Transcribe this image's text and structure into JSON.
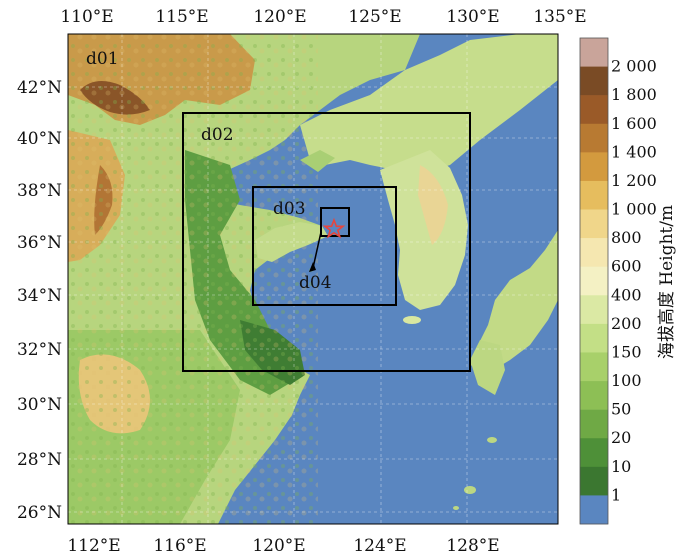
{
  "map": {
    "top_axis_labels": [
      "110°E",
      "115°E",
      "120°E",
      "125°E",
      "130°E",
      "135°E"
    ],
    "bottom_axis_labels": [
      "112°E",
      "116°E",
      "120°E",
      "124°E",
      "128°E"
    ],
    "left_axis_labels": [
      "42°N",
      "40°N",
      "38°N",
      "36°N",
      "34°N",
      "32°N",
      "30°N",
      "28°N",
      "26°N"
    ],
    "domains": [
      {
        "label": "d01"
      },
      {
        "label": "d02"
      },
      {
        "label": "d03"
      },
      {
        "label": "d04"
      }
    ],
    "marker": {
      "name": "star-marker",
      "color": "#e8453c"
    },
    "ocean_color": "#5a86c0"
  },
  "legend": {
    "title": "海拔高度 Height/m",
    "levels": [
      "2 000",
      "1 800",
      "1 600",
      "1 400",
      "1 200",
      "1 000",
      "800",
      "600",
      "400",
      "200",
      "150",
      "100",
      "50",
      "20",
      "10",
      "1"
    ],
    "colors": [
      "#c9a49a",
      "#7a4b25",
      "#9a5a28",
      "#b87a32",
      "#d39a3e",
      "#e6bd5e",
      "#f0d68a",
      "#f5e7b0",
      "#f4f1c4",
      "#dbe9a4",
      "#c3df86",
      "#a8d06a",
      "#8dbf55",
      "#6fa945",
      "#4e9038",
      "#3b7730",
      "#5a86c0"
    ]
  }
}
